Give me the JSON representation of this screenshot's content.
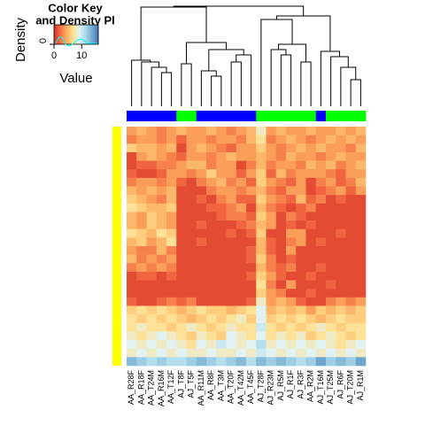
{
  "chart_data": {
    "type": "heatmap",
    "x": [
      "AA_R28F",
      "AA_R18F",
      "AA_T24M",
      "AA_R16M",
      "AA_T12F",
      "AJ_T8F",
      "AJ_T5F",
      "AA_R11M",
      "AA_R8F",
      "AA_T3M",
      "AA_T20F",
      "AA_T42M",
      "AA_T45F",
      "AJ_T28F",
      "AJ_R23M",
      "AJ_R5M",
      "AJ_R1F",
      "AJ_R3F",
      "AA_R2M",
      "AJ_T16M",
      "AJ_T25M",
      "AJ_R6F",
      "AJ_T20M",
      "AJ_R1M"
    ],
    "col_side_colors": [
      "#0000ff",
      "#0000ff",
      "#0000ff",
      "#0000ff",
      "#0000ff",
      "#00ff00",
      "#00ff00",
      "#0000ff",
      "#0000ff",
      "#0000ff",
      "#0000ff",
      "#0000ff",
      "#0000ff",
      "#00ff00",
      "#00ff00",
      "#00ff00",
      "#00ff00",
      "#00ff00",
      "#00ff00",
      "#0000ff",
      "#00ff00",
      "#00ff00",
      "#00ff00",
      "#00ff00"
    ],
    "row_side_color": "#ffff00",
    "colors": [
      "#d73027",
      "#f46d43",
      "#fdae61",
      "#fee090",
      "#e0f3f8",
      "#abd9e9",
      "#74add1",
      "#4575b4"
    ],
    "values": [
      [
        4,
        5,
        4,
        3,
        4,
        5,
        4,
        4,
        5,
        4,
        3,
        4,
        5,
        8,
        4,
        5,
        4,
        4,
        5,
        4,
        4,
        5,
        4,
        5
      ],
      [
        3,
        4,
        4,
        3,
        4,
        2,
        4,
        4,
        3,
        4,
        4,
        3,
        5,
        7,
        3,
        4,
        5,
        4,
        3,
        4,
        5,
        4,
        5,
        4
      ],
      [
        6,
        5,
        5,
        4,
        5,
        1,
        4,
        5,
        4,
        3,
        2,
        4,
        4,
        6,
        4,
        3,
        4,
        5,
        4,
        5,
        4,
        4,
        3,
        5
      ],
      [
        1,
        4,
        5,
        4,
        3,
        2,
        4,
        4,
        3,
        4,
        5,
        4,
        4,
        5,
        4,
        3,
        5,
        4,
        4,
        3,
        4,
        5,
        4,
        4
      ],
      [
        1,
        2,
        2,
        3,
        3,
        4,
        5,
        5,
        3,
        4,
        4,
        1,
        3,
        5,
        3,
        4,
        4,
        3,
        5,
        4,
        5,
        3,
        4,
        5
      ],
      [
        2,
        1,
        1,
        2,
        4,
        4,
        3,
        4,
        6,
        4,
        4,
        2,
        4,
        6,
        2,
        5,
        3,
        4,
        4,
        4,
        3,
        2,
        4,
        4
      ],
      [
        3,
        4,
        4,
        3,
        4,
        2,
        1,
        3,
        4,
        5,
        3,
        4,
        2,
        6,
        4,
        3,
        2,
        4,
        1,
        3,
        4,
        2,
        3,
        5
      ],
      [
        5,
        4,
        5,
        4,
        5,
        1,
        1,
        1,
        3,
        4,
        4,
        3,
        4,
        5,
        3,
        2,
        4,
        4,
        1,
        2,
        3,
        4,
        2,
        4
      ],
      [
        6,
        5,
        4,
        3,
        5,
        1,
        1,
        2,
        1,
        3,
        4,
        2,
        2,
        6,
        4,
        3,
        2,
        5,
        2,
        3,
        1,
        2,
        1,
        1
      ],
      [
        7,
        6,
        5,
        5,
        6,
        1,
        1,
        1,
        2,
        2,
        3,
        4,
        1,
        5,
        3,
        2,
        1,
        2,
        3,
        1,
        1,
        1,
        1,
        1
      ],
      [
        5,
        4,
        6,
        5,
        4,
        1,
        1,
        1,
        1,
        2,
        3,
        3,
        2,
        6,
        4,
        1,
        3,
        2,
        1,
        1,
        1,
        1,
        1,
        1
      ],
      [
        5,
        4,
        6,
        5,
        4,
        1,
        1,
        2,
        1,
        1,
        1,
        2,
        3,
        5,
        4,
        1,
        2,
        1,
        2,
        1,
        1,
        1,
        1,
        1
      ],
      [
        7,
        6,
        5,
        7,
        6,
        1,
        1,
        1,
        1,
        1,
        2,
        1,
        2,
        6,
        1,
        1,
        4,
        4,
        1,
        1,
        1,
        2,
        1,
        1
      ],
      [
        5,
        6,
        4,
        5,
        7,
        1,
        1,
        2,
        1,
        1,
        1,
        1,
        1,
        5,
        2,
        1,
        3,
        4,
        1,
        2,
        1,
        1,
        1,
        1
      ],
      [
        4,
        3,
        3,
        5,
        3,
        1,
        1,
        1,
        1,
        1,
        1,
        1,
        2,
        5,
        2,
        1,
        4,
        1,
        1,
        1,
        1,
        1,
        1,
        1
      ],
      [
        5,
        3,
        4,
        3,
        4,
        1,
        1,
        1,
        1,
        1,
        1,
        1,
        2,
        6,
        3,
        1,
        2,
        1,
        1,
        1,
        1,
        1,
        1,
        1
      ],
      [
        3,
        4,
        3,
        4,
        3,
        1,
        1,
        1,
        1,
        1,
        1,
        1,
        1,
        5,
        3,
        2,
        3,
        1,
        1,
        2,
        1,
        1,
        1,
        1
      ],
      [
        1,
        2,
        2,
        1,
        2,
        1,
        1,
        1,
        1,
        1,
        1,
        1,
        2,
        6,
        4,
        2,
        1,
        1,
        2,
        1,
        1,
        1,
        1,
        1
      ],
      [
        1,
        1,
        1,
        1,
        1,
        1,
        1,
        1,
        1,
        1,
        1,
        1,
        1,
        7,
        3,
        1,
        4,
        1,
        1,
        1,
        2,
        1,
        1,
        1
      ],
      [
        1,
        1,
        1,
        1,
        1,
        1,
        1,
        1,
        1,
        1,
        1,
        1,
        1,
        6,
        4,
        3,
        1,
        1,
        2,
        1,
        1,
        1,
        1,
        1
      ],
      [
        2,
        1,
        1,
        2,
        3,
        2,
        3,
        1,
        1,
        1,
        1,
        1,
        2,
        8,
        4,
        5,
        4,
        2,
        1,
        1,
        3,
        4,
        3,
        4
      ],
      [
        6,
        7,
        6,
        7,
        6,
        5,
        6,
        7,
        6,
        6,
        5,
        6,
        7,
        9,
        5,
        6,
        5,
        6,
        4,
        6,
        5,
        6,
        5,
        6
      ],
      [
        7,
        6,
        7,
        6,
        7,
        6,
        5,
        6,
        7,
        6,
        7,
        8,
        6,
        9,
        6,
        7,
        6,
        7,
        6,
        5,
        6,
        7,
        6,
        6
      ],
      [
        7,
        8,
        7,
        7,
        6,
        7,
        8,
        7,
        6,
        7,
        8,
        7,
        7,
        10,
        7,
        6,
        7,
        6,
        7,
        8,
        7,
        6,
        7,
        7
      ],
      [
        8,
        7,
        8,
        9,
        8,
        7,
        6,
        8,
        7,
        6,
        9,
        8,
        7,
        9,
        7,
        8,
        7,
        8,
        6,
        7,
        8,
        7,
        6,
        7
      ],
      [
        9,
        8,
        9,
        8,
        9,
        8,
        7,
        9,
        8,
        10,
        9,
        8,
        9,
        11,
        8,
        9,
        8,
        9,
        8,
        9,
        8,
        7,
        8,
        9
      ],
      [
        8,
        9,
        8,
        9,
        8,
        9,
        8,
        8,
        9,
        8,
        8,
        9,
        8,
        10,
        9,
        8,
        9,
        8,
        9,
        8,
        9,
        8,
        9,
        8
      ],
      [
        13,
        12,
        11,
        12,
        11,
        11,
        12,
        13,
        12,
        11,
        12,
        13,
        11,
        13,
        12,
        13,
        12,
        11,
        12,
        14,
        12,
        13,
        12,
        14
      ]
    ],
    "key": {
      "title": "Color Key",
      "subtitle": "and Density Pl",
      "xlabel": "Value",
      "ylabel": "Density",
      "xlim": [
        0,
        16
      ],
      "xticks": [
        0,
        10
      ],
      "ylim": [
        0,
        0.2
      ],
      "yticks": [
        0
      ]
    }
  }
}
